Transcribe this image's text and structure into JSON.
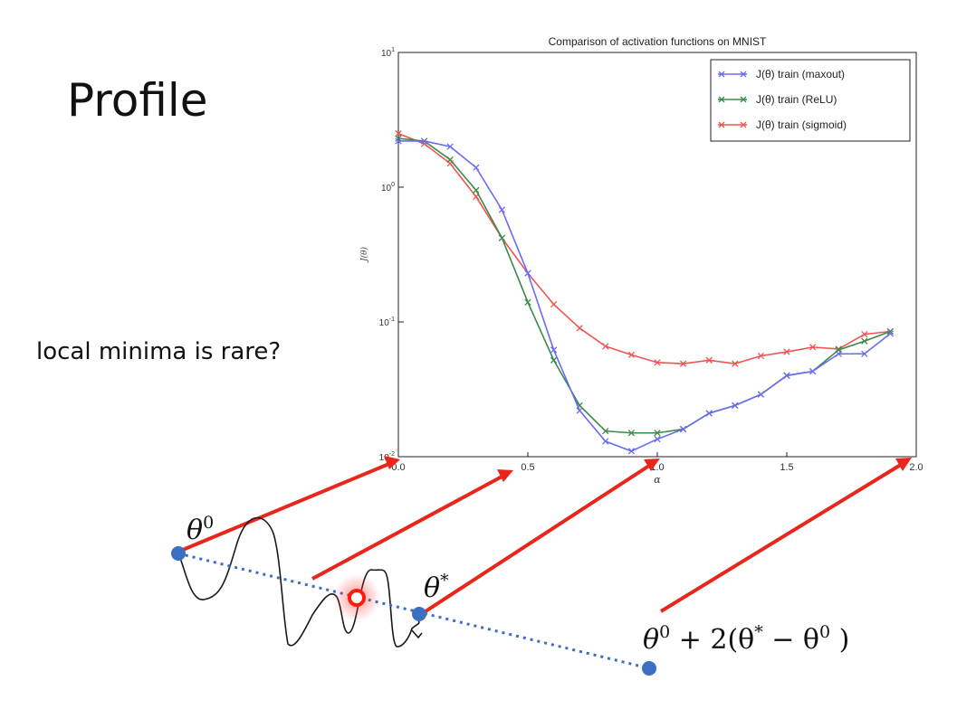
{
  "slide": {
    "title": "Profile",
    "note": "local minima is rare?"
  },
  "sketch": {
    "start_label": "θ",
    "start_sup": "0",
    "opt_label": "θ",
    "opt_sup": "*",
    "end_label_main": "θ",
    "end_label_sup0": "0",
    "end_label_mid": " + 2(θ",
    "end_label_sup1": "*",
    "end_label_minus": " − θ",
    "end_label_sup2": "0",
    "end_label_close": " )"
  },
  "colors": {
    "maxout": "#6b6bf0",
    "relu": "#3a8a4a",
    "sigmoid": "#ee5555",
    "arrow": "#e8261c",
    "dot": "#3b6fc4",
    "dotted_line": "#3b6fc4"
  },
  "chart_data": {
    "type": "line",
    "title": "Comparison of activation functions on MNIST",
    "xlabel": "α",
    "ylabel": "J(θ)",
    "xlim": [
      0.0,
      2.0
    ],
    "ylim": [
      0.01,
      10
    ],
    "yscale": "log",
    "xticks": [
      "0.0",
      "0.5",
      "1.0",
      "1.5",
      "2.0"
    ],
    "yticks": [
      {
        "base": "10",
        "exp": "1",
        "value": 10
      },
      {
        "base": "10",
        "exp": "0",
        "value": 1
      },
      {
        "base": "10",
        "exp": "-1",
        "value": 0.1
      },
      {
        "base": "10",
        "exp": "-2",
        "value": 0.01
      }
    ],
    "legend_position": "top-right",
    "grid": false,
    "x": [
      0.0,
      0.1,
      0.2,
      0.3,
      0.4,
      0.5,
      0.6,
      0.7,
      0.8,
      0.9,
      1.0,
      1.1,
      1.2,
      1.3,
      1.4,
      1.5,
      1.6,
      1.7,
      1.8,
      1.9
    ],
    "series": [
      {
        "name": "J(θ) train (maxout)",
        "color": "#6b6bf0",
        "values": [
          2.2,
          2.2,
          2.0,
          1.4,
          0.68,
          0.23,
          0.062,
          0.022,
          0.013,
          0.011,
          0.0135,
          0.016,
          0.021,
          0.024,
          0.029,
          0.04,
          0.043,
          0.058,
          0.058,
          0.082
        ]
      },
      {
        "name": "J(θ) train (ReLU)",
        "color": "#3a8a4a",
        "values": [
          2.3,
          2.2,
          1.6,
          0.95,
          0.42,
          0.14,
          0.052,
          0.024,
          0.0155,
          0.015,
          0.015,
          0.016,
          0.021,
          0.024,
          0.029,
          0.04,
          0.043,
          0.062,
          0.072,
          0.085
        ]
      },
      {
        "name": "J(θ) train (sigmoid)",
        "color": "#ee5555",
        "values": [
          2.5,
          2.1,
          1.5,
          0.85,
          0.42,
          0.23,
          0.135,
          0.09,
          0.066,
          0.057,
          0.05,
          0.049,
          0.052,
          0.049,
          0.056,
          0.06,
          0.065,
          0.063,
          0.081,
          0.085
        ]
      }
    ]
  }
}
